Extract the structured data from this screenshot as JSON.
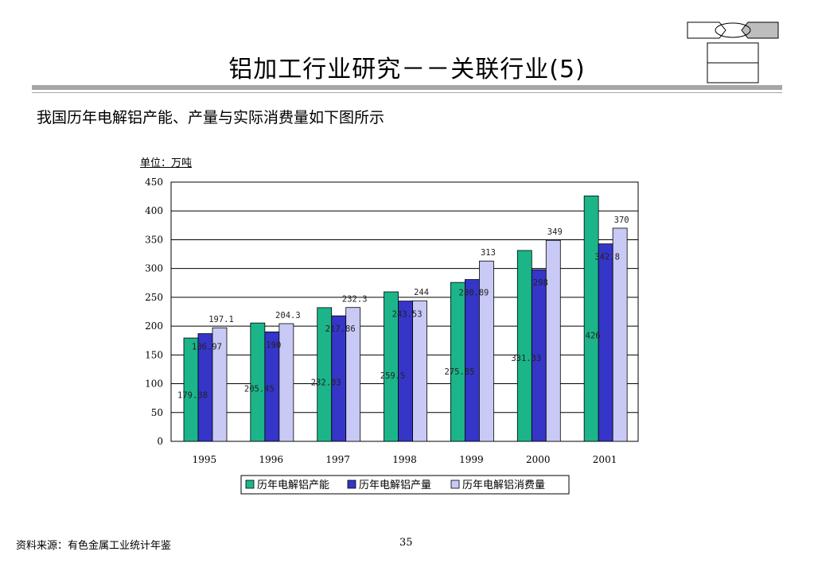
{
  "header": {
    "title": "铝加工行业研究－－关联行业(5)",
    "subtitle": "我国历年电解铝产能、产量与实际消费量如下图所示"
  },
  "footer": {
    "source": "资料来源：有色金属工业统计年鉴",
    "page_number": "35"
  },
  "chart_data": {
    "type": "bar",
    "unit_label": "单位：万吨",
    "categories": [
      "1995",
      "1996",
      "1997",
      "1998",
      "1999",
      "2000",
      "2001"
    ],
    "series": [
      {
        "name": "历年电解铝产能",
        "color": "#1bb589",
        "values": [
          179.38,
          205.45,
          232.03,
          259.5,
          275.85,
          331.33,
          426
        ],
        "labels": [
          "179.38",
          "205.45",
          "232.03",
          "259.5",
          "275.85",
          "331.33",
          "426"
        ]
      },
      {
        "name": "历年电解铝产量",
        "color": "#3535c8",
        "values": [
          186.97,
          190,
          217.86,
          243.53,
          280.89,
          298,
          342.8
        ],
        "labels": [
          "186.97",
          "190",
          "217.86",
          "243.53",
          "280.89",
          "298",
          "342.8"
        ]
      },
      {
        "name": "历年电解铝消费量",
        "color": "#c9c9f5",
        "values": [
          197.1,
          204.3,
          232.3,
          244,
          313,
          349,
          370
        ],
        "labels": [
          "197.1",
          "204.3",
          "232.3",
          "244",
          "313",
          "349",
          "370"
        ]
      }
    ],
    "ylim": [
      0,
      450
    ],
    "yticks": [
      "0",
      "50",
      "100",
      "150",
      "200",
      "250",
      "300",
      "350",
      "400",
      "450"
    ],
    "grid": true,
    "legend_position": "bottom"
  }
}
